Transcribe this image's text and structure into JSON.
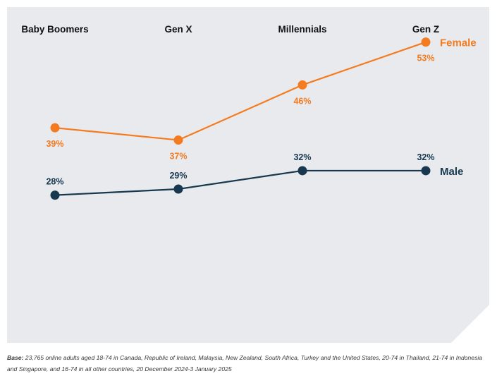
{
  "chart_data": {
    "type": "line",
    "categories": [
      "Baby Boomers",
      "Gen X",
      "Millennials",
      "Gen Z"
    ],
    "series": [
      {
        "name": "Female",
        "values": [
          39,
          37,
          46,
          53
        ],
        "labels": [
          "39%",
          "37%",
          "46%",
          "53%"
        ],
        "color": "#f47b20"
      },
      {
        "name": "Male",
        "values": [
          28,
          29,
          32,
          32
        ],
        "labels": [
          "28%",
          "29%",
          "32%",
          "32%"
        ],
        "color": "#17384f"
      }
    ],
    "value_unit": "%",
    "grid": false,
    "background_color": "#e8eaed"
  },
  "footnote": {
    "label": "Base:",
    "text": " 23,765 online adults aged 18-74 in Canada, Republic of Ireland, Malaysia, New Zealand, South Africa, Turkey and the United States, 20-74 in Thailand, 21-74 in Indonesia and Singapore, and 16-74 in all other countries, 20 December 2024-3 January 2025"
  }
}
